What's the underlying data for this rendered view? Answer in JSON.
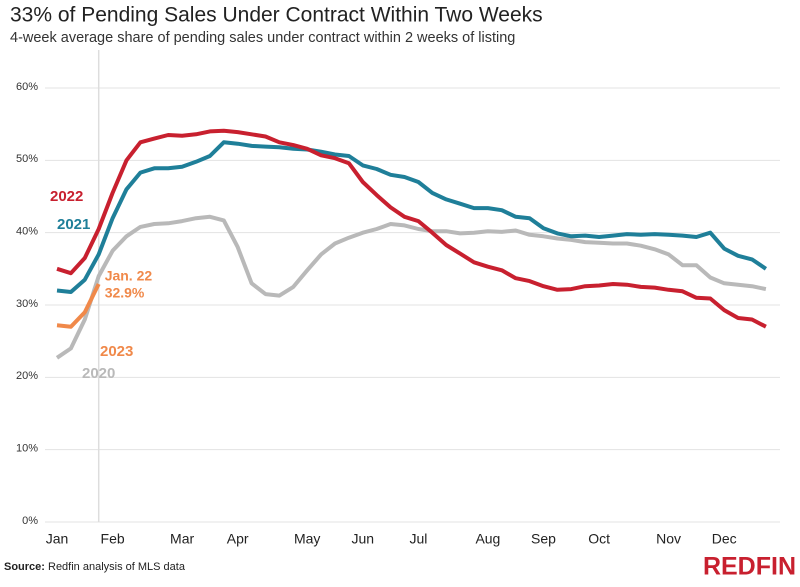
{
  "chart_data": {
    "type": "line",
    "title": "33% of Pending Sales Under Contract Within Two Weeks",
    "subtitle": "4-week average share of pending sales under contract within 2 weeks of listing",
    "source_label": "Source:",
    "source": "Redfin analysis of MLS data",
    "brand": "REDFIN",
    "annotation": "Jan. 22",
    "categories": [
      "Jan",
      null,
      null,
      null,
      "Feb",
      null,
      null,
      null,
      null,
      "Mar",
      null,
      null,
      null,
      "Apr",
      null,
      null,
      null,
      null,
      "May",
      null,
      null,
      null,
      "Jun",
      null,
      null,
      null,
      "Jul",
      null,
      null,
      null,
      null,
      "Aug",
      null,
      null,
      null,
      "Sep",
      null,
      null,
      null,
      "Oct",
      null,
      null,
      null,
      null,
      "Nov",
      null,
      null,
      null,
      "Dec",
      null,
      null,
      null
    ],
    "ylim": [
      0,
      60
    ],
    "yticks": [
      {
        "value": 0,
        "label": "0%"
      },
      {
        "value": 10,
        "label": "10%"
      },
      {
        "value": 20,
        "label": "20%"
      },
      {
        "value": 30,
        "label": "30%"
      },
      {
        "value": 40,
        "label": "40%"
      },
      {
        "value": 50,
        "label": "50%"
      },
      {
        "value": 60,
        "label": "60%"
      }
    ],
    "grid": true,
    "series": [
      {
        "name": "2020",
        "color": "#b9b9b9",
        "values": [
          22.7,
          24.0,
          28.0,
          34.0,
          37.5,
          39.5,
          40.8,
          41.2,
          41.3,
          41.6,
          42.0,
          42.2,
          41.7,
          38.0,
          33.0,
          31.5,
          31.3,
          32.5,
          34.8,
          37.0,
          38.5,
          39.3,
          40.0,
          40.5,
          41.2,
          41.0,
          40.5,
          40.2,
          40.2,
          39.9,
          40.0,
          40.2,
          40.1,
          40.3,
          39.7,
          39.5,
          39.2,
          39.0,
          38.7,
          38.6,
          38.5,
          38.5,
          38.2,
          37.7,
          37.0,
          35.5,
          35.5,
          33.8,
          33.0,
          32.8,
          32.6,
          32.2
        ]
      },
      {
        "name": "2021",
        "color": "#1f7f99",
        "values": [
          32.0,
          31.8,
          33.5,
          37.0,
          42.0,
          46.0,
          48.3,
          48.9,
          48.9,
          49.1,
          49.8,
          50.6,
          52.5,
          52.3,
          52.0,
          51.9,
          51.8,
          51.6,
          51.5,
          51.2,
          50.8,
          50.6,
          49.3,
          48.8,
          48.0,
          47.7,
          47.0,
          45.5,
          44.6,
          44.0,
          43.4,
          43.4,
          43.1,
          42.2,
          42.0,
          40.6,
          39.9,
          39.5,
          39.6,
          39.4,
          39.6,
          39.8,
          39.7,
          39.8,
          39.7,
          39.6,
          39.4,
          40.0,
          37.8,
          36.8,
          36.3,
          35.0
        ]
      },
      {
        "name": "2022",
        "color": "#c8202f",
        "values": [
          35.0,
          34.4,
          36.5,
          40.5,
          45.5,
          50.0,
          52.5,
          53.0,
          53.5,
          53.4,
          53.6,
          54.0,
          54.1,
          53.9,
          53.6,
          53.3,
          52.5,
          52.1,
          51.6,
          50.7,
          50.3,
          49.6,
          47.0,
          45.2,
          43.5,
          42.2,
          41.6,
          40.0,
          38.3,
          37.1,
          35.9,
          35.3,
          34.8,
          33.7,
          33.3,
          32.6,
          32.1,
          32.2,
          32.6,
          32.7,
          32.9,
          32.8,
          32.5,
          32.4,
          32.1,
          31.9,
          31.0,
          30.9,
          29.3,
          28.2,
          28.0,
          27.0
        ]
      },
      {
        "name": "2023",
        "color": "#f0894a",
        "values": [
          27.2,
          27.0,
          29.0,
          32.9,
          null,
          null,
          null,
          null,
          null,
          null,
          null,
          null,
          null,
          null,
          null,
          null,
          null,
          null,
          null,
          null,
          null,
          null,
          null,
          null,
          null,
          null,
          null,
          null,
          null,
          null,
          null,
          null,
          null,
          null,
          null,
          null,
          null,
          null,
          null,
          null,
          null,
          null,
          null,
          null,
          null,
          null,
          null,
          null,
          null,
          null,
          null,
          null
        ],
        "value_labels": [
          null,
          null,
          null,
          "32.9%",
          null,
          null,
          null,
          null,
          null,
          null,
          null,
          null,
          null,
          null,
          null,
          null,
          null,
          null,
          null,
          null,
          null,
          null,
          null,
          null,
          null,
          null,
          null,
          null,
          null,
          null,
          null,
          null,
          null,
          null,
          null,
          null,
          null,
          null,
          null,
          null,
          null,
          null,
          null,
          null,
          null,
          null,
          null,
          null,
          null,
          null,
          null,
          null
        ]
      }
    ]
  }
}
